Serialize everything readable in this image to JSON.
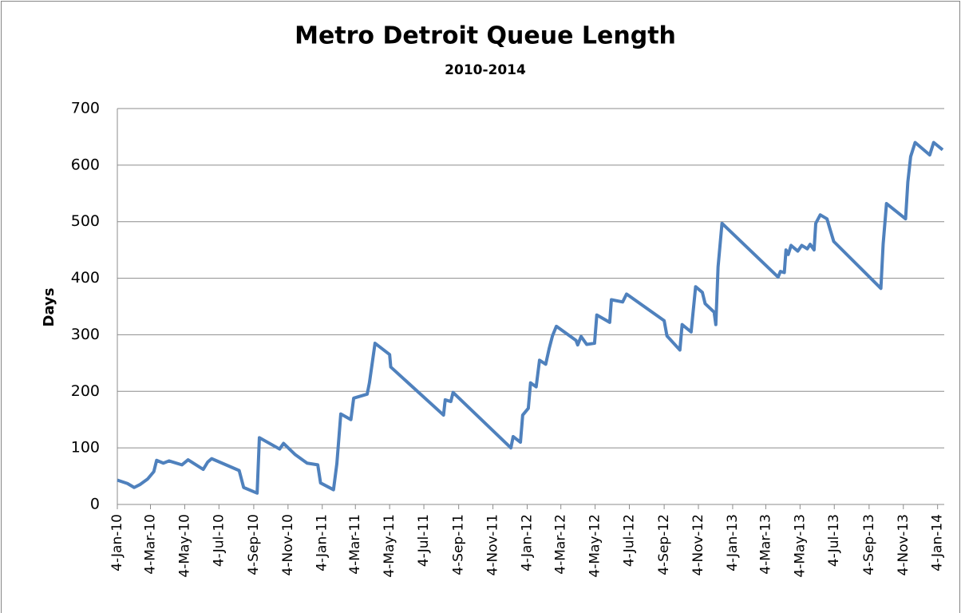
{
  "chart_data": {
    "type": "line",
    "title": "Metro Detroit Queue Length",
    "subtitle": "2010-2014",
    "y_label": "Days",
    "x": [
      "2010-01-04",
      "2010-01-22",
      "2010-02-03",
      "2010-02-13",
      "2010-02-27",
      "2010-03-10",
      "2010-03-15",
      "2010-03-27",
      "2010-04-06",
      "2010-04-29",
      "2010-05-10",
      "2010-06-06",
      "2010-06-14",
      "2010-06-21",
      "2010-07-12",
      "2010-08-09",
      "2010-08-17",
      "2010-09-10",
      "2010-09-14",
      "2010-10-20",
      "2010-10-27",
      "2010-11-17",
      "2010-12-08",
      "2010-12-27",
      "2011-01-01",
      "2011-01-24",
      "2011-01-30",
      "2011-02-06",
      "2011-02-24",
      "2011-03-01",
      "2011-03-25",
      "2011-03-29",
      "2011-04-08",
      "2011-05-04",
      "2011-05-06",
      "2011-08-08",
      "2011-08-11",
      "2011-08-21",
      "2011-08-25",
      "2011-12-06",
      "2011-12-10",
      "2011-12-23",
      "2011-12-27",
      "2012-01-06",
      "2012-01-10",
      "2012-01-20",
      "2012-01-26",
      "2012-02-06",
      "2012-02-12",
      "2012-02-18",
      "2012-02-25",
      "2012-03-31",
      "2012-04-03",
      "2012-04-09",
      "2012-04-19",
      "2012-05-03",
      "2012-05-07",
      "2012-05-30",
      "2012-06-02",
      "2012-06-22",
      "2012-06-29",
      "2012-09-04",
      "2012-09-09",
      "2012-10-02",
      "2012-10-06",
      "2012-10-22",
      "2012-10-30",
      "2012-11-11",
      "2012-11-16",
      "2012-12-02",
      "2012-12-05",
      "2012-12-09",
      "2012-12-16",
      "2013-03-26",
      "2013-03-30",
      "2013-04-06",
      "2013-04-09",
      "2013-04-13",
      "2013-04-18",
      "2013-04-30",
      "2013-05-07",
      "2013-05-17",
      "2013-05-22",
      "2013-05-29",
      "2013-06-01",
      "2013-06-09",
      "2013-06-21",
      "2013-06-26",
      "2013-07-03",
      "2013-09-25",
      "2013-09-29",
      "2013-10-05",
      "2013-11-08",
      "2013-11-12",
      "2013-11-17",
      "2013-11-25",
      "2013-12-21",
      "2013-12-28",
      "2014-01-13"
    ],
    "series": [
      {
        "name": "Queue Length",
        "color": "#4f81bd",
        "values": [
          43,
          37,
          30,
          35,
          45,
          58,
          78,
          73,
          77,
          70,
          79,
          62,
          75,
          81,
          72,
          60,
          30,
          20,
          118,
          98,
          108,
          88,
          73,
          70,
          38,
          26,
          72,
          160,
          150,
          188,
          195,
          215,
          285,
          265,
          243,
          158,
          185,
          182,
          198,
          100,
          120,
          110,
          158,
          170,
          215,
          208,
          255,
          248,
          275,
          298,
          315,
          290,
          282,
          297,
          283,
          285,
          335,
          322,
          362,
          358,
          372,
          325,
          298,
          273,
          318,
          305,
          385,
          375,
          355,
          340,
          318,
          420,
          497,
          402,
          412,
          410,
          450,
          442,
          458,
          448,
          458,
          452,
          460,
          450,
          497,
          512,
          505,
          488,
          465,
          382,
          460,
          532,
          505,
          570,
          615,
          640,
          618,
          640,
          627
        ]
      }
    ],
    "xlim": [
      "2010-01-04",
      "2014-01-13"
    ],
    "xticks": [
      {
        "value": "2010-01-04",
        "label": "4-Jan-10"
      },
      {
        "value": "2010-03-04",
        "label": "4-Mar-10"
      },
      {
        "value": "2010-05-04",
        "label": "4-May-10"
      },
      {
        "value": "2010-07-04",
        "label": "4-Jul-10"
      },
      {
        "value": "2010-09-04",
        "label": "4-Sep-10"
      },
      {
        "value": "2010-11-04",
        "label": "4-Nov-10"
      },
      {
        "value": "2011-01-04",
        "label": "4-Jan-11"
      },
      {
        "value": "2011-03-04",
        "label": "4-Mar-11"
      },
      {
        "value": "2011-05-04",
        "label": "4-May-11"
      },
      {
        "value": "2011-07-04",
        "label": "4-Jul-11"
      },
      {
        "value": "2011-09-04",
        "label": "4-Sep-11"
      },
      {
        "value": "2011-11-04",
        "label": "4-Nov-11"
      },
      {
        "value": "2012-01-04",
        "label": "4-Jan-12"
      },
      {
        "value": "2012-03-04",
        "label": "4-Mar-12"
      },
      {
        "value": "2012-05-04",
        "label": "4-May-12"
      },
      {
        "value": "2012-07-04",
        "label": "4-Jul-12"
      },
      {
        "value": "2012-09-04",
        "label": "4-Sep-12"
      },
      {
        "value": "2012-11-04",
        "label": "4-Nov-12"
      },
      {
        "value": "2013-01-04",
        "label": "4-Jan-13"
      },
      {
        "value": "2013-03-04",
        "label": "4-Mar-13"
      },
      {
        "value": "2013-05-04",
        "label": "4-May-13"
      },
      {
        "value": "2013-07-04",
        "label": "4-Jul-13"
      },
      {
        "value": "2013-09-04",
        "label": "4-Sep-13"
      },
      {
        "value": "2013-11-04",
        "label": "4-Nov-13"
      },
      {
        "value": "2014-01-04",
        "label": "4-Jan-14"
      }
    ],
    "ylim": [
      0,
      700
    ],
    "yticks": [
      0,
      100,
      200,
      300,
      400,
      500,
      600,
      700
    ],
    "grid": true
  }
}
